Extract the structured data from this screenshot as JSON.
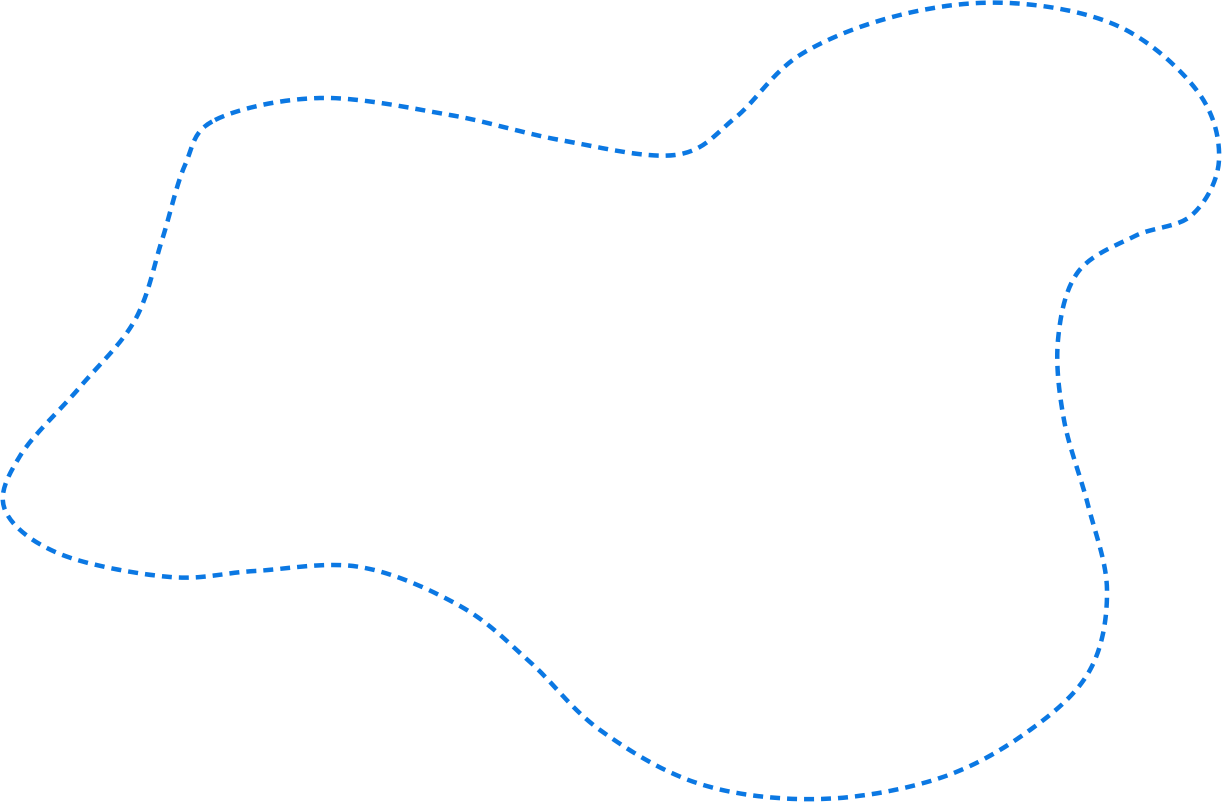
{
  "shape": {
    "kind": "closed-freeform-blob",
    "stroke_style": "dashed",
    "stroke_color": "#0b78e3",
    "fill": "none"
  }
}
